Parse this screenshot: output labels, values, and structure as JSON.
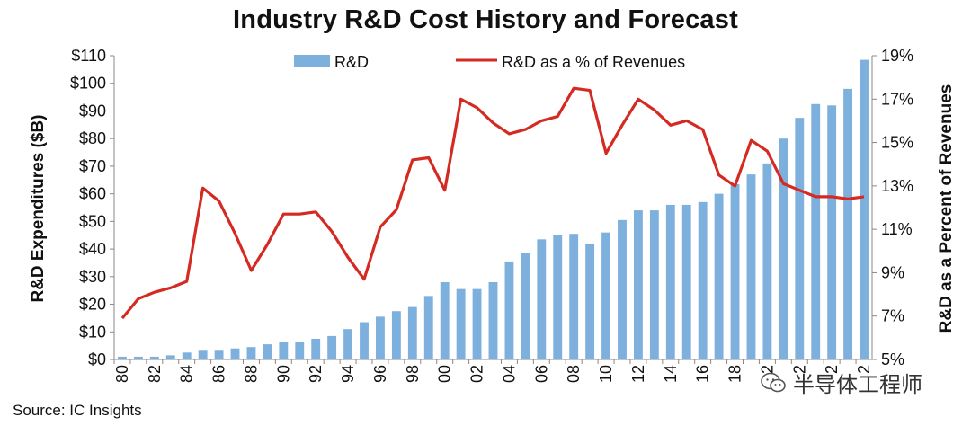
{
  "colors": {
    "bar": "#7eb0dd",
    "line": "#d42a22",
    "axis": "#888888"
  },
  "footer": {
    "source": "Source: IC Insights"
  },
  "watermark": {
    "text": "半导体工程师",
    "icon": "wechat-icon"
  },
  "chart_data": {
    "type": "bar+line",
    "title": "Industry R&D Cost History and Forecast",
    "ylabel": "R&D Expenditures ($B)",
    "y2label": "R&D as a Percent of Revenues",
    "ylim": [
      0,
      110
    ],
    "y2lim": [
      5,
      19
    ],
    "yticks": [
      "$0",
      "$10",
      "$20",
      "$30",
      "$40",
      "$50",
      "$60",
      "$70",
      "$80",
      "$90",
      "$100",
      "$110"
    ],
    "y2ticks": [
      "5%",
      "7%",
      "9%",
      "11%",
      "13%",
      "15%",
      "17%",
      "19%"
    ],
    "x": [
      "80",
      "81",
      "82",
      "83",
      "84",
      "85",
      "86",
      "87",
      "88",
      "89",
      "90",
      "91",
      "92",
      "93",
      "94",
      "95",
      "96",
      "97",
      "98",
      "99",
      "00",
      "01",
      "02",
      "03",
      "04",
      "05",
      "06",
      "07",
      "08",
      "09",
      "10",
      "11",
      "12",
      "13",
      "14",
      "15",
      "16",
      "17",
      "18",
      "19",
      "20",
      "21",
      "22",
      "23",
      "24",
      "25",
      "26"
    ],
    "xtick_labels": [
      "80",
      "",
      "82",
      "",
      "84",
      "",
      "86",
      "",
      "88",
      "",
      "90",
      "",
      "92",
      "",
      "94",
      "",
      "96",
      "",
      "98",
      "",
      "00",
      "",
      "02",
      "",
      "04",
      "",
      "06",
      "",
      "08",
      "",
      "10",
      "",
      "12",
      "",
      "14",
      "",
      "16",
      "",
      "18",
      "",
      "2",
      "",
      "2",
      "",
      "2",
      "",
      "2"
    ],
    "legend_position": "top",
    "series": [
      {
        "name": "R&D",
        "type": "bar",
        "values": [
          1,
          1,
          1,
          1.5,
          2.5,
          3.5,
          3.5,
          4,
          4.5,
          5.5,
          6.5,
          6.5,
          7.5,
          8.5,
          11,
          13.5,
          15.5,
          17.5,
          19,
          23,
          28,
          25.5,
          25.5,
          28,
          35.5,
          38.5,
          43.5,
          45,
          45.5,
          42,
          46,
          50.5,
          54,
          54,
          56,
          56,
          57,
          60,
          63.5,
          67,
          71,
          80,
          87.5,
          92.5,
          92,
          98,
          108.5
        ]
      },
      {
        "name": "R&D as a % of Revenues",
        "type": "line",
        "axis": "right",
        "values": [
          6.9,
          7.8,
          8.1,
          8.3,
          8.6,
          12.9,
          12.3,
          10.8,
          9.1,
          10.3,
          11.7,
          11.7,
          11.8,
          10.9,
          9.7,
          8.7,
          11.1,
          11.9,
          14.2,
          14.3,
          12.8,
          17,
          16.6,
          15.9,
          15.4,
          15.6,
          16,
          16.2,
          17.5,
          17.4,
          14.5,
          15.8,
          17,
          16.5,
          15.8,
          16,
          15.6,
          13.5,
          13,
          15.1,
          14.6,
          13.1,
          12.8,
          12.5,
          12.5,
          12.4,
          12.5
        ]
      }
    ]
  }
}
